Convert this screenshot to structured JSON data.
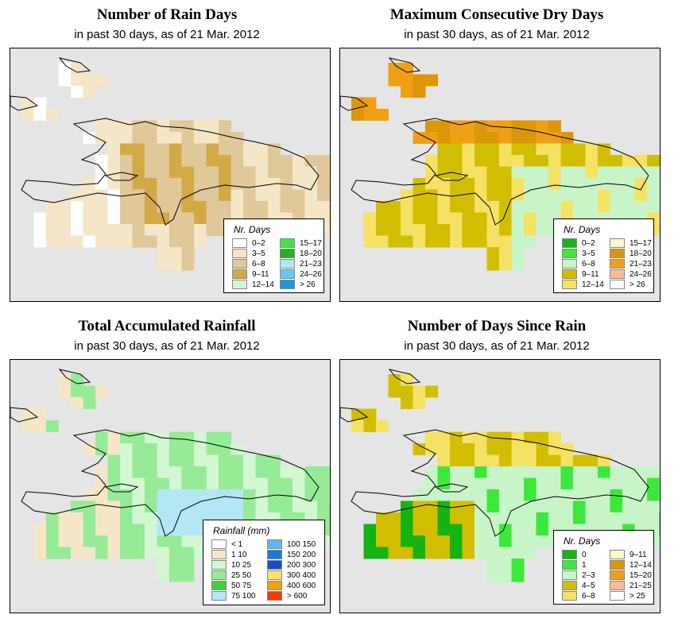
{
  "panels": [
    {
      "id": "rain-days",
      "title": "Number of Rain Days",
      "subtitle": "in past 30 days, as of  21 Mar. 2012",
      "legend_title": "Nr. Days",
      "legend": [
        {
          "label": "0–2",
          "color": "#ffffff"
        },
        {
          "label": "3–5",
          "color": "#f5e6c8"
        },
        {
          "label": "6–8",
          "color": "#e0c89a"
        },
        {
          "label": "9–11",
          "color": "#d2aa45"
        },
        {
          "label": "12–14",
          "color": "#d2f7d2"
        },
        {
          "label": "15–17",
          "color": "#3ce83c"
        },
        {
          "label": "18–20",
          "color": "#1eb41e"
        },
        {
          "label": "21–23",
          "color": "#b4e6f5"
        },
        {
          "label": "24–26",
          "color": "#64c8f0"
        },
        {
          "label": "> 26",
          "color": "#1e96dc"
        }
      ]
    },
    {
      "id": "max-dry",
      "title": "Maximum Consecutive Dry Days",
      "subtitle": "in past 30 days, as of  21 Mar. 2012",
      "legend_title": "Nr. Days",
      "legend": [
        {
          "label": "0–2",
          "color": "#14b414"
        },
        {
          "label": "3–5",
          "color": "#3ce83c"
        },
        {
          "label": "6–8",
          "color": "#c8f5c8"
        },
        {
          "label": "9–11",
          "color": "#d2be00"
        },
        {
          "label": "12–14",
          "color": "#f5e164"
        },
        {
          "label": "15–17",
          "color": "#fafac8"
        },
        {
          "label": "18–20",
          "color": "#dc960a"
        },
        {
          "label": "21–23",
          "color": "#f0a014"
        },
        {
          "label": "24–26",
          "color": "#f5be96"
        },
        {
          "label": "> 26",
          "color": "#ffffff"
        }
      ]
    },
    {
      "id": "rainfall",
      "title": "Total Accumulated Rainfall",
      "subtitle": "in past 30 days, as of  21 Mar. 2012",
      "legend_title": "Rainfall (mm)",
      "legend": [
        {
          "label": "< 1",
          "color": "#ffffff"
        },
        {
          "label": "1    10",
          "color": "#f5e6c8"
        },
        {
          "label": "10    25",
          "color": "#d2f7d2"
        },
        {
          "label": "25    50",
          "color": "#96eb96"
        },
        {
          "label": "50    75",
          "color": "#3cd23c"
        },
        {
          "label": "75   100",
          "color": "#b4e6f5"
        },
        {
          "label": "100   150",
          "color": "#64b4f0"
        },
        {
          "label": "150   200",
          "color": "#1e78dc"
        },
        {
          "label": "200   300",
          "color": "#1450c8"
        },
        {
          "label": "300   400",
          "color": "#fae164"
        },
        {
          "label": "400   600",
          "color": "#f5a00a"
        },
        {
          "label": "> 600",
          "color": "#f03c0a"
        }
      ]
    },
    {
      "id": "days-since",
      "title": "Number of Days Since Rain",
      "subtitle": "in past 30 days, as of  21 Mar. 2012",
      "legend_title": "Nr. Days",
      "legend": [
        {
          "label": "0",
          "color": "#14b414"
        },
        {
          "label": "1",
          "color": "#3ce83c"
        },
        {
          "label": "2–3",
          "color": "#c8f5c8"
        },
        {
          "label": "4–5",
          "color": "#d2be00"
        },
        {
          "label": "6–8",
          "color": "#f5e164"
        },
        {
          "label": "9–11",
          "color": "#fafac8"
        },
        {
          "label": "12–14",
          "color": "#dc960a"
        },
        {
          "label": "15–20",
          "color": "#f0a014"
        },
        {
          "label": "21–25",
          "color": "#f5be96"
        },
        {
          "label": "> 25",
          "color": "#ffffff"
        }
      ]
    }
  ]
}
